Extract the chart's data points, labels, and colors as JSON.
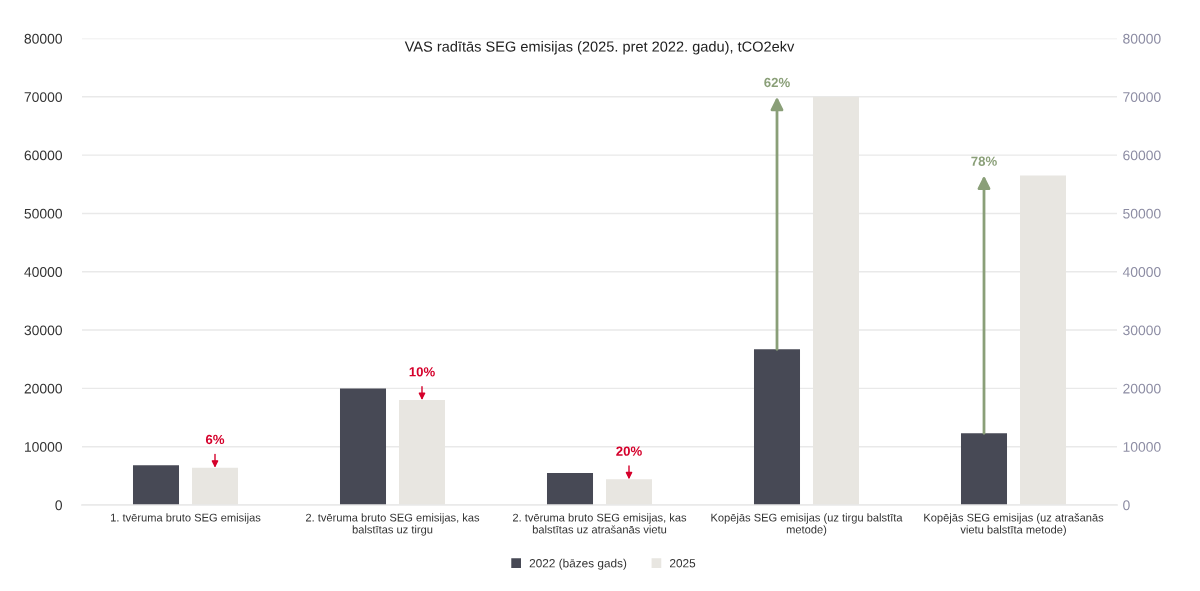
{
  "chart_data": {
    "type": "bar",
    "title": "VAS radītās SEG emisijas (2025. pret 2022. gadu), tCO2ekv",
    "categories": [
      "1. tvēruma bruto SEG emisijas",
      "2. tvēruma bruto SEG emisijas, kas\nbalstītas uz tirgu",
      "2. tvēruma bruto SEG emisijas, kas\nbalstītas uz atrašanās vietu",
      "Kopējās SEG emisijas (uz tirgu balstīta\nmetode)",
      "Kopējās SEG emisijas (uz atrašanās\nvietu balstīta metode)"
    ],
    "series": [
      {
        "name": "2022 (bāzes gads)",
        "color": "#474955",
        "values": [
          6800,
          20000,
          5500,
          26700,
          12300
        ]
      },
      {
        "name": "2025",
        "color": "#e8e6e1",
        "values": [
          6400,
          18000,
          4400,
          70000,
          56500
        ]
      }
    ],
    "ylim": [
      0,
      80000
    ],
    "yticks": [
      0,
      10000,
      20000,
      30000,
      40000,
      50000,
      60000,
      70000,
      80000
    ],
    "y2lim": [
      0,
      80000
    ],
    "y2ticks": [
      0,
      10000,
      20000,
      30000,
      40000,
      50000,
      60000,
      70000,
      80000
    ],
    "grid": "y",
    "legend": "bottom",
    "annotations": [
      "6%",
      "10%",
      "20%",
      "62%",
      "78%"
    ]
  }
}
